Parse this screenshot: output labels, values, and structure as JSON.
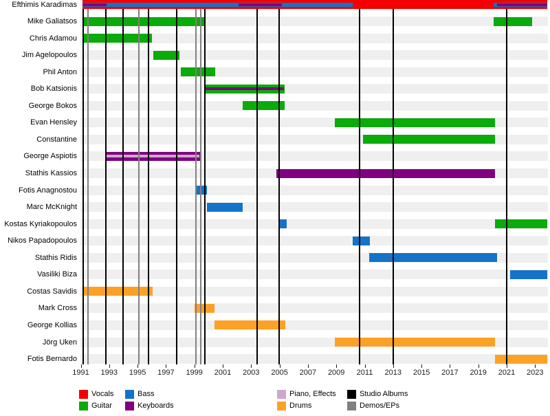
{
  "chart_data": {
    "type": "timeline",
    "description_of_rendering": "Band-member timeline (gantt style): one row per member, colored bars = role tenure, black vertical lines = studio albums, gray vertical lines = demos/EPs",
    "x_axis": {
      "start": 1991,
      "end": 2024,
      "tick_years": [
        1991,
        1993,
        1995,
        1997,
        1999,
        2001,
        2003,
        2005,
        2007,
        2009,
        2011,
        2013,
        2015,
        2017,
        2019,
        2021,
        2023
      ]
    },
    "role_colors": {
      "vocals": "#f40000",
      "guitar": "#0aab0a",
      "bass": "#1473c8",
      "keyboards": "#800080",
      "piano_effects": "#cfa6cf",
      "drums": "#fba226",
      "studio_albums": "#000000",
      "demos_eps": "#808080"
    },
    "members": [
      {
        "name": "Efthimis Karadimas",
        "bars": [
          {
            "role": "vocals",
            "from": 1991.1,
            "to": 2023.85,
            "size": "main"
          },
          {
            "role": "bass",
            "from": 1991.1,
            "to": 2010.15,
            "size": "mid"
          },
          {
            "role": "keyboards",
            "from": 1991.1,
            "to": 1992.8,
            "size": "thin"
          },
          {
            "role": "keyboards",
            "from": 2002.1,
            "to": 2005.15,
            "size": "thin"
          },
          {
            "role": "bass",
            "from": 2020.1,
            "to": 2023.85,
            "size": "mid"
          },
          {
            "role": "keyboards",
            "from": 2020.3,
            "to": 2023.85,
            "size": "thin"
          }
        ]
      },
      {
        "name": "Mike Galiatsos",
        "bars": [
          {
            "role": "guitar",
            "from": 1991.1,
            "to": 1999.7,
            "size": "main"
          },
          {
            "role": "guitar",
            "from": 2020.1,
            "to": 2022.8,
            "size": "main"
          }
        ]
      },
      {
        "name": "Chris Adamou",
        "bars": [
          {
            "role": "guitar",
            "from": 1991.1,
            "to": 1996.0,
            "size": "main"
          }
        ]
      },
      {
        "name": "Jim Agelopoulos",
        "bars": [
          {
            "role": "guitar",
            "from": 1996.1,
            "to": 1997.95,
            "size": "main"
          }
        ]
      },
      {
        "name": "Phil Anton",
        "bars": [
          {
            "role": "guitar",
            "from": 1998.05,
            "to": 2000.45,
            "size": "main"
          }
        ]
      },
      {
        "name": "Bob Katsionis",
        "bars": [
          {
            "role": "guitar",
            "from": 1999.7,
            "to": 2005.35,
            "size": "main"
          },
          {
            "role": "keyboards",
            "from": 1999.75,
            "to": 2005.3,
            "size": "thin"
          }
        ]
      },
      {
        "name": "George Bokos",
        "bars": [
          {
            "role": "guitar",
            "from": 2002.4,
            "to": 2005.35,
            "size": "main"
          }
        ]
      },
      {
        "name": "Evan Hensley",
        "bars": [
          {
            "role": "guitar",
            "from": 2008.9,
            "to": 2020.2,
            "size": "main"
          }
        ]
      },
      {
        "name": "Constantine",
        "bars": [
          {
            "role": "guitar",
            "from": 2010.9,
            "to": 2020.2,
            "size": "main"
          }
        ]
      },
      {
        "name": "George Aspiotis",
        "bars": [
          {
            "role": "keyboards",
            "from": 1992.7,
            "to": 1999.45,
            "size": "main"
          },
          {
            "role": "piano_effects",
            "from": 1992.8,
            "to": 1999.35,
            "size": "thin"
          }
        ]
      },
      {
        "name": "Stathis Kassios",
        "bars": [
          {
            "role": "keyboards",
            "from": 2004.8,
            "to": 2020.2,
            "size": "main"
          }
        ]
      },
      {
        "name": "Fotis Anagnostou",
        "bars": [
          {
            "role": "bass",
            "from": 1999.1,
            "to": 1999.9,
            "size": "main"
          }
        ]
      },
      {
        "name": "Marc McKnight",
        "bars": [
          {
            "role": "bass",
            "from": 1999.9,
            "to": 2002.4,
            "size": "main"
          }
        ]
      },
      {
        "name": "Kostas Kyriakopoulos",
        "bars": [
          {
            "role": "bass",
            "from": 2005.0,
            "to": 2005.5,
            "size": "main"
          },
          {
            "role": "guitar",
            "from": 2020.2,
            "to": 2023.85,
            "size": "main"
          }
        ]
      },
      {
        "name": "Nikos Papadopoulos",
        "bars": [
          {
            "role": "bass",
            "from": 2010.15,
            "to": 2011.35,
            "size": "main"
          }
        ]
      },
      {
        "name": "Stathis Ridis",
        "bars": [
          {
            "role": "bass",
            "from": 2011.3,
            "to": 2020.3,
            "size": "main"
          }
        ]
      },
      {
        "name": "Vasiliki Biza",
        "bars": [
          {
            "role": "bass",
            "from": 2021.25,
            "to": 2023.85,
            "size": "main"
          }
        ]
      },
      {
        "name": "Costas Savidis",
        "bars": [
          {
            "role": "drums",
            "from": 1991.1,
            "to": 1996.05,
            "size": "main"
          }
        ]
      },
      {
        "name": "Mark Cross",
        "bars": [
          {
            "role": "drums",
            "from": 1999.0,
            "to": 2000.4,
            "size": "main"
          }
        ]
      },
      {
        "name": "George Kollias",
        "bars": [
          {
            "role": "drums",
            "from": 2000.4,
            "to": 2005.4,
            "size": "main"
          }
        ]
      },
      {
        "name": "Jörg Uken",
        "bars": [
          {
            "role": "drums",
            "from": 2008.9,
            "to": 2020.2,
            "size": "main"
          }
        ]
      },
      {
        "name": "Fotis Bernardo",
        "bars": [
          {
            "role": "drums",
            "from": 2020.2,
            "to": 2023.85,
            "size": "main"
          }
        ]
      }
    ],
    "studio_albums_years": [
      1991.15,
      1992.75,
      1994.0,
      1995.75,
      1997.75,
      1999.75,
      2003.4,
      2004.95,
      2010.65,
      2013.0,
      2021.0
    ],
    "demos_eps_years": [
      1991.5,
      1995.1,
      1999.1,
      1999.43
    ]
  },
  "legend": {
    "items": [
      {
        "label": "Vocals",
        "role": "vocals",
        "col": 0,
        "row": 0
      },
      {
        "label": "Guitar",
        "role": "guitar",
        "col": 0,
        "row": 1
      },
      {
        "label": "Bass",
        "role": "bass",
        "col": 1,
        "row": 0
      },
      {
        "label": "Keyboards",
        "role": "keyboards",
        "col": 1,
        "row": 1
      },
      {
        "label": "Piano, Effects",
        "role": "piano_effects",
        "col": 2,
        "row": 0
      },
      {
        "label": "Drums",
        "role": "drums",
        "col": 2,
        "row": 1
      },
      {
        "label": "Studio Albums",
        "role": "studio_albums",
        "col": 3,
        "row": 0
      },
      {
        "label": "Demos/EPs",
        "role": "demos_eps",
        "col": 3,
        "row": 1
      }
    ]
  }
}
